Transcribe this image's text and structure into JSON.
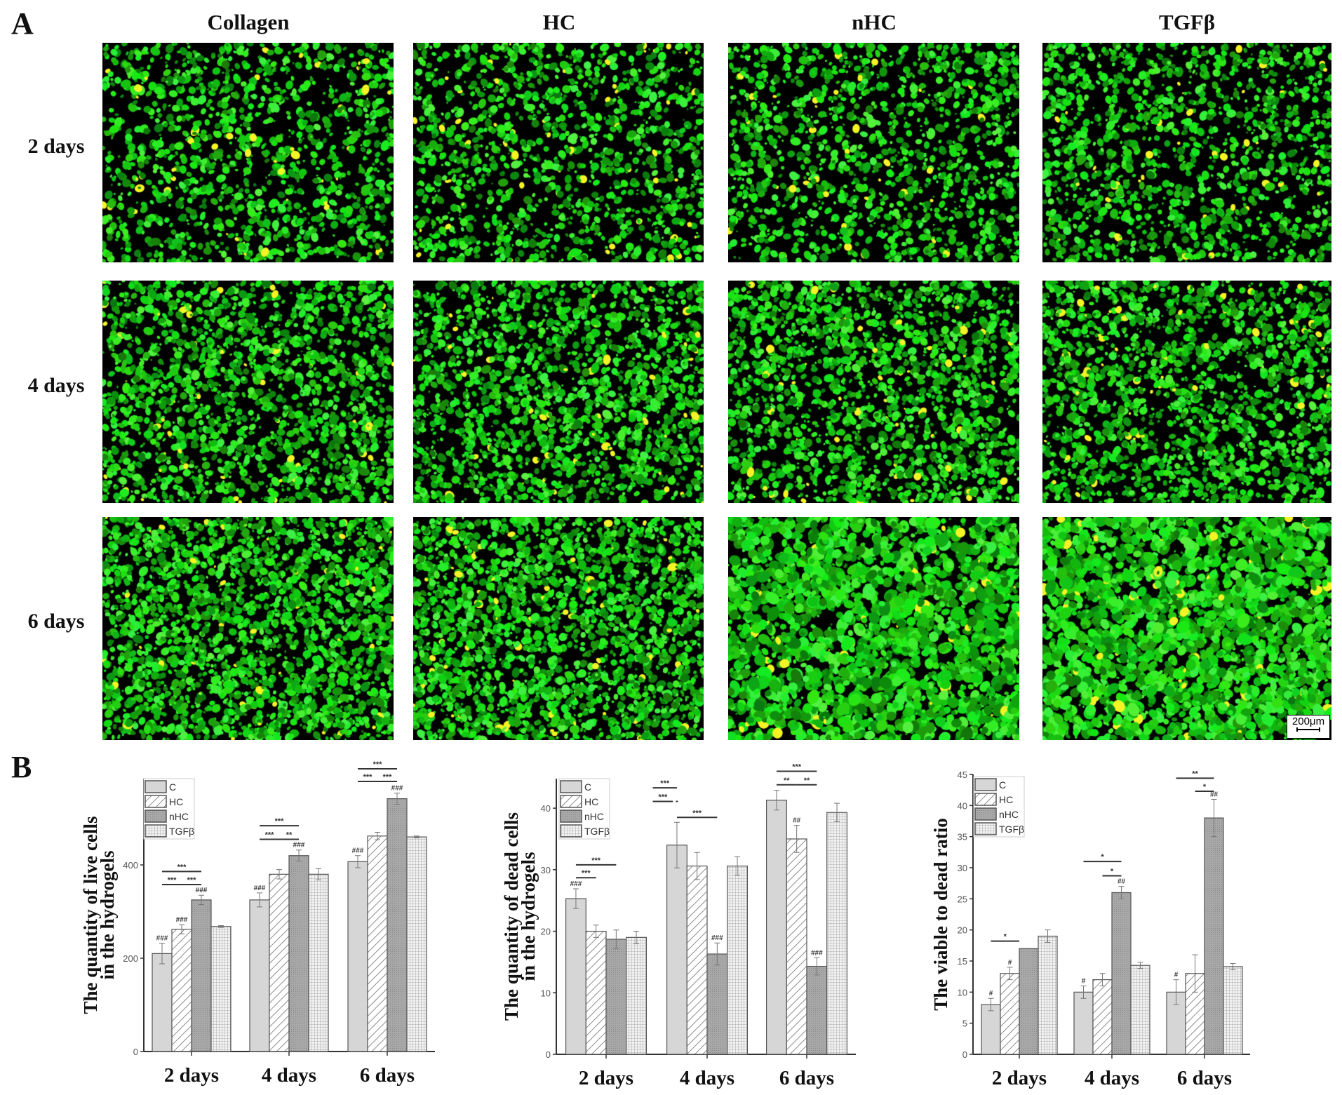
{
  "panel_a": {
    "letter": "A",
    "columns": [
      "Collagen",
      "HC",
      "nHC",
      "TGFβ"
    ],
    "rows": [
      "2 days",
      "4 days",
      "6 days"
    ],
    "scale_bar": "200μm",
    "stain_color": "#22e01a"
  },
  "panel_b": {
    "letter": "B"
  },
  "chart_data": [
    {
      "type": "bar",
      "categories": [
        "2 days",
        "4 days",
        "6 days"
      ],
      "ylabel": [
        "The quantity of live cells",
        "in the hydrogels"
      ],
      "ylim": [
        0,
        585
      ],
      "yticks": [
        0,
        200,
        400
      ],
      "legend": "top-left",
      "series": [
        {
          "name": "C",
          "values": [
            210,
            325,
            407
          ],
          "errors": [
            22,
            15,
            13
          ],
          "marks": [
            "###",
            "###",
            "###"
          ]
        },
        {
          "name": "HC",
          "values": [
            262,
            380,
            462
          ],
          "errors": [
            10,
            10,
            8
          ],
          "marks": [
            "###",
            "",
            ""
          ]
        },
        {
          "name": "nHC",
          "values": [
            325,
            420,
            542
          ],
          "errors": [
            10,
            12,
            12
          ],
          "marks": [
            "###",
            "###",
            "###"
          ]
        },
        {
          "name": "TGFβ",
          "values": [
            268,
            380,
            460
          ],
          "errors": [
            2,
            12,
            2
          ],
          "marks": [
            "",
            "",
            ""
          ]
        }
      ],
      "brackets": [
        {
          "group": 0,
          "from": 0,
          "to": 2,
          "y": 386,
          "label": "***"
        },
        {
          "group": 0,
          "from": 0,
          "to": 1,
          "y": 358,
          "label": "***"
        },
        {
          "group": 0,
          "from": 1,
          "to": 2,
          "y": 358,
          "label": "***"
        },
        {
          "group": 1,
          "from": 0,
          "to": 2,
          "y": 484,
          "label": "***"
        },
        {
          "group": 1,
          "from": 0,
          "to": 1,
          "y": 455,
          "label": "***"
        },
        {
          "group": 1,
          "from": 1,
          "to": 2,
          "y": 455,
          "label": "**"
        },
        {
          "group": 2,
          "from": 0,
          "to": 2,
          "y": 606,
          "label": "***"
        },
        {
          "group": 2,
          "from": 0,
          "to": 1,
          "y": 579,
          "label": "***"
        },
        {
          "group": 2,
          "from": 1,
          "to": 2,
          "y": 579,
          "label": "***"
        }
      ]
    },
    {
      "type": "bar",
      "categories": [
        "2 days",
        "4 days",
        "6 days"
      ],
      "ylabel": [
        "The quantity of dead cells",
        "in the hydrogels"
      ],
      "ylim": [
        0,
        44.8
      ],
      "yticks": [
        0,
        10,
        20,
        30,
        40
      ],
      "legend": "top-left",
      "series": [
        {
          "name": "C",
          "values": [
            25.3,
            34,
            41.3
          ],
          "errors": [
            1.6,
            3.7,
            1.6
          ],
          "marks": [
            "###",
            "",
            ""
          ]
        },
        {
          "name": "HC",
          "values": [
            20,
            30.6,
            35
          ],
          "errors": [
            1,
            2.2,
            2.2
          ],
          "marks": [
            "",
            "",
            "##"
          ]
        },
        {
          "name": "nHC",
          "values": [
            18.7,
            16.3,
            14.3
          ],
          "errors": [
            1.5,
            1.8,
            1.4
          ],
          "marks": [
            "",
            "###",
            "###"
          ]
        },
        {
          "name": "TGFβ",
          "values": [
            19,
            30.6,
            39.3
          ],
          "errors": [
            1,
            1.5,
            1.5
          ],
          "marks": [
            "",
            "",
            ""
          ]
        }
      ],
      "brackets": [
        {
          "group": 0,
          "from": 0,
          "to": 2,
          "y": 30.8,
          "label": "***"
        },
        {
          "group": 0,
          "from": 0,
          "to": 1,
          "y": 28.7,
          "label": "***"
        },
        {
          "group": 1,
          "from": -1.2,
          "to": 0,
          "y": 43.3,
          "label": "***"
        },
        {
          "group": 1,
          "from": -1.2,
          "to": -0.2,
          "y": 41.1,
          "label": "***"
        },
        {
          "group": 1,
          "from": -0.05,
          "to": 0.05,
          "y": 41.1,
          "label": ""
        },
        {
          "group": 1,
          "from": 0,
          "to": 2,
          "y": 38.5,
          "label": "***"
        },
        {
          "group": 2,
          "from": 0,
          "to": 2,
          "y": 46,
          "label": "***"
        },
        {
          "group": 2,
          "from": 0,
          "to": 1,
          "y": 43.8,
          "label": "**"
        },
        {
          "group": 2,
          "from": 1,
          "to": 2,
          "y": 43.8,
          "label": "**"
        }
      ]
    },
    {
      "type": "bar",
      "categories": [
        "2 days",
        "4 days",
        "6 days"
      ],
      "ylabel": [
        "The viable to dead ratio"
      ],
      "ylim": [
        0,
        45
      ],
      "yticks": [
        0,
        5,
        10,
        15,
        20,
        25,
        30,
        35,
        40,
        45
      ],
      "legend": "top-left",
      "series": [
        {
          "name": "C",
          "values": [
            8,
            10,
            10
          ],
          "errors": [
            1,
            1,
            2
          ],
          "marks": [
            "#",
            "#",
            "#"
          ]
        },
        {
          "name": "HC",
          "values": [
            13,
            12,
            13
          ],
          "errors": [
            1,
            1,
            3
          ],
          "marks": [
            "#",
            "",
            ""
          ]
        },
        {
          "name": "nHC",
          "values": [
            17,
            26,
            38
          ],
          "errors": [
            0,
            1,
            3
          ],
          "marks": [
            "",
            "##",
            "##"
          ]
        },
        {
          "name": "TGFβ",
          "values": [
            19,
            14.3,
            14.1
          ],
          "errors": [
            1,
            0.5,
            0.5
          ],
          "marks": [
            "",
            "",
            ""
          ]
        }
      ],
      "brackets": [
        {
          "group": 0,
          "from": 0,
          "to": 1.5,
          "y": 18.2,
          "label": "*"
        },
        {
          "group": 1,
          "from": 0,
          "to": 2,
          "y": 31,
          "label": "*"
        },
        {
          "group": 1,
          "from": 1,
          "to": 2,
          "y": 28.7,
          "label": "*"
        },
        {
          "group": 2,
          "from": 0,
          "to": 2,
          "y": 44.4,
          "label": "**"
        },
        {
          "group": 2,
          "from": 1,
          "to": 2,
          "y": 42.3,
          "label": "*"
        }
      ]
    }
  ]
}
